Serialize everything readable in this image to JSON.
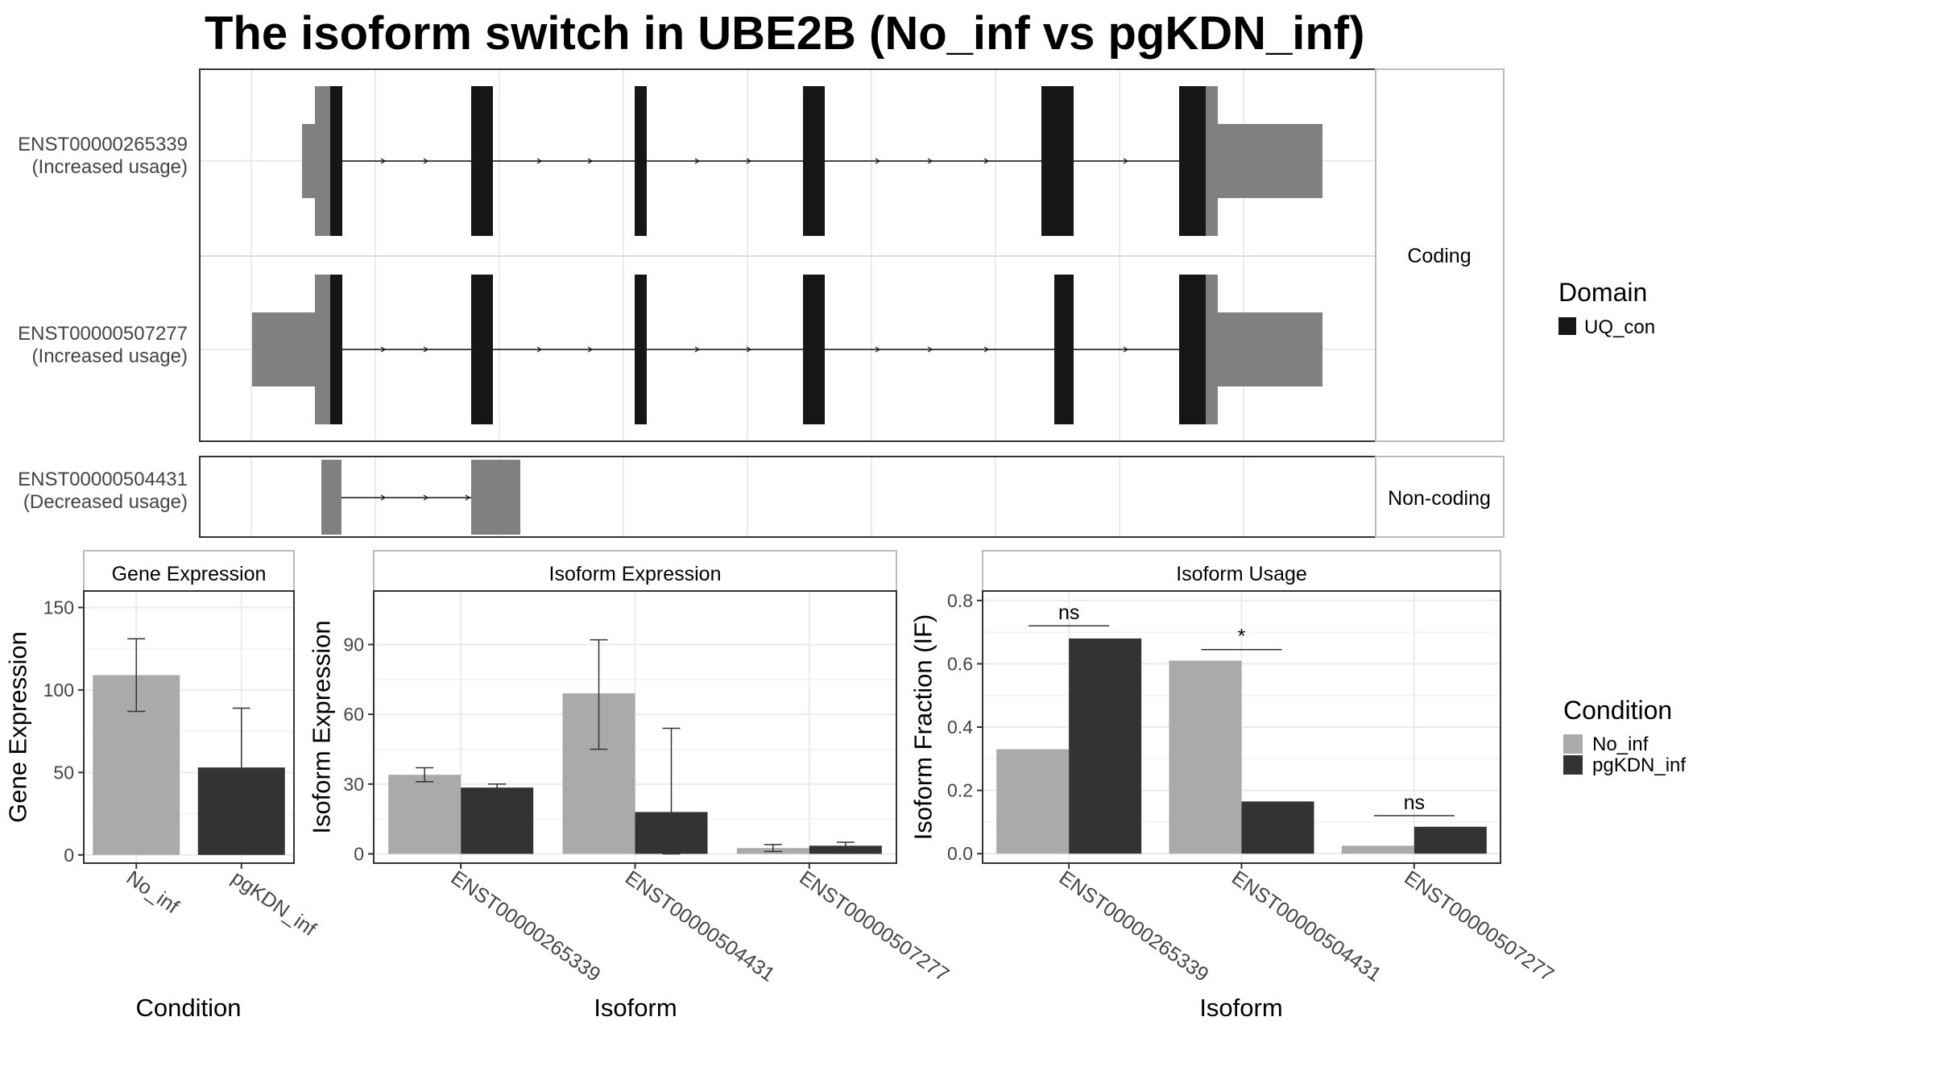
{
  "title": "The isoform switch in UBE2B (No_inf vs pgKDN_inf)",
  "colors": {
    "no_inf": "#aaaaaa",
    "pgkdn_inf": "#333333",
    "domain": "#161616",
    "utr": "#808080",
    "grid": "#ebebeb",
    "panel_border": "#333333",
    "strip_border": "#bbbbbb"
  },
  "structure": {
    "strips": {
      "coding": "Coding",
      "noncoding": "Non-coding"
    },
    "isoforms": [
      {
        "id": "ENST00000265339",
        "usage": "(Increased usage)"
      },
      {
        "id": "ENST00000507277",
        "usage": "(Increased usage)"
      },
      {
        "id": "ENST00000504431",
        "usage": "(Decreased usage)"
      }
    ],
    "legend": {
      "title": "Domain",
      "items": [
        {
          "label": "UQ_con"
        }
      ]
    }
  },
  "chart_data": [
    {
      "type": "bar",
      "panel": "gene_expression",
      "strip": "Gene Expression",
      "xlabel": "Condition",
      "ylabel": "Gene Expression",
      "categories": [
        "No_inf",
        "pgKDN_inf"
      ],
      "values": [
        109,
        53
      ],
      "error_low": [
        87,
        17
      ],
      "error_high": [
        131,
        89
      ],
      "ylim": [
        -5,
        160
      ],
      "yticks": [
        0,
        50,
        100,
        150
      ]
    },
    {
      "type": "bar",
      "panel": "isoform_expression",
      "strip": "Isoform Expression",
      "xlabel": "Isoform",
      "ylabel": "Isoform Expression",
      "categories": [
        "ENST00000265339",
        "ENST00000504431",
        "ENST00000507277"
      ],
      "series": [
        {
          "name": "No_inf",
          "values": [
            34,
            69,
            2.5
          ],
          "error_low": [
            31,
            45,
            1
          ],
          "error_high": [
            37,
            92,
            4
          ]
        },
        {
          "name": "pgKDN_inf",
          "values": [
            28.5,
            18,
            3.5
          ],
          "error_low": [
            27,
            0,
            2
          ],
          "error_high": [
            30,
            54,
            5
          ]
        }
      ],
      "ylim": [
        -4,
        113
      ],
      "yticks": [
        0,
        30,
        60,
        90
      ]
    },
    {
      "type": "bar",
      "panel": "isoform_usage",
      "strip": "Isoform Usage",
      "xlabel": "Isoform",
      "ylabel": "Isoform Fraction (IF)",
      "categories": [
        "ENST00000265339",
        "ENST00000504431",
        "ENST00000507277"
      ],
      "series": [
        {
          "name": "No_inf",
          "values": [
            0.33,
            0.61,
            0.025
          ]
        },
        {
          "name": "pgKDN_inf",
          "values": [
            0.68,
            0.165,
            0.085
          ]
        }
      ],
      "significance": [
        "ns",
        "*",
        "ns"
      ],
      "significance_y": [
        0.72,
        0.645,
        0.12
      ],
      "ylim": [
        -0.03,
        0.83
      ],
      "yticks": [
        0.0,
        0.2,
        0.4,
        0.6,
        0.8
      ],
      "ytick_labels": [
        "0.0",
        "0.2",
        "0.4",
        "0.6",
        "0.8"
      ]
    }
  ],
  "condition_legend": {
    "title": "Condition",
    "items": [
      "No_inf",
      "pgKDN_inf"
    ]
  }
}
